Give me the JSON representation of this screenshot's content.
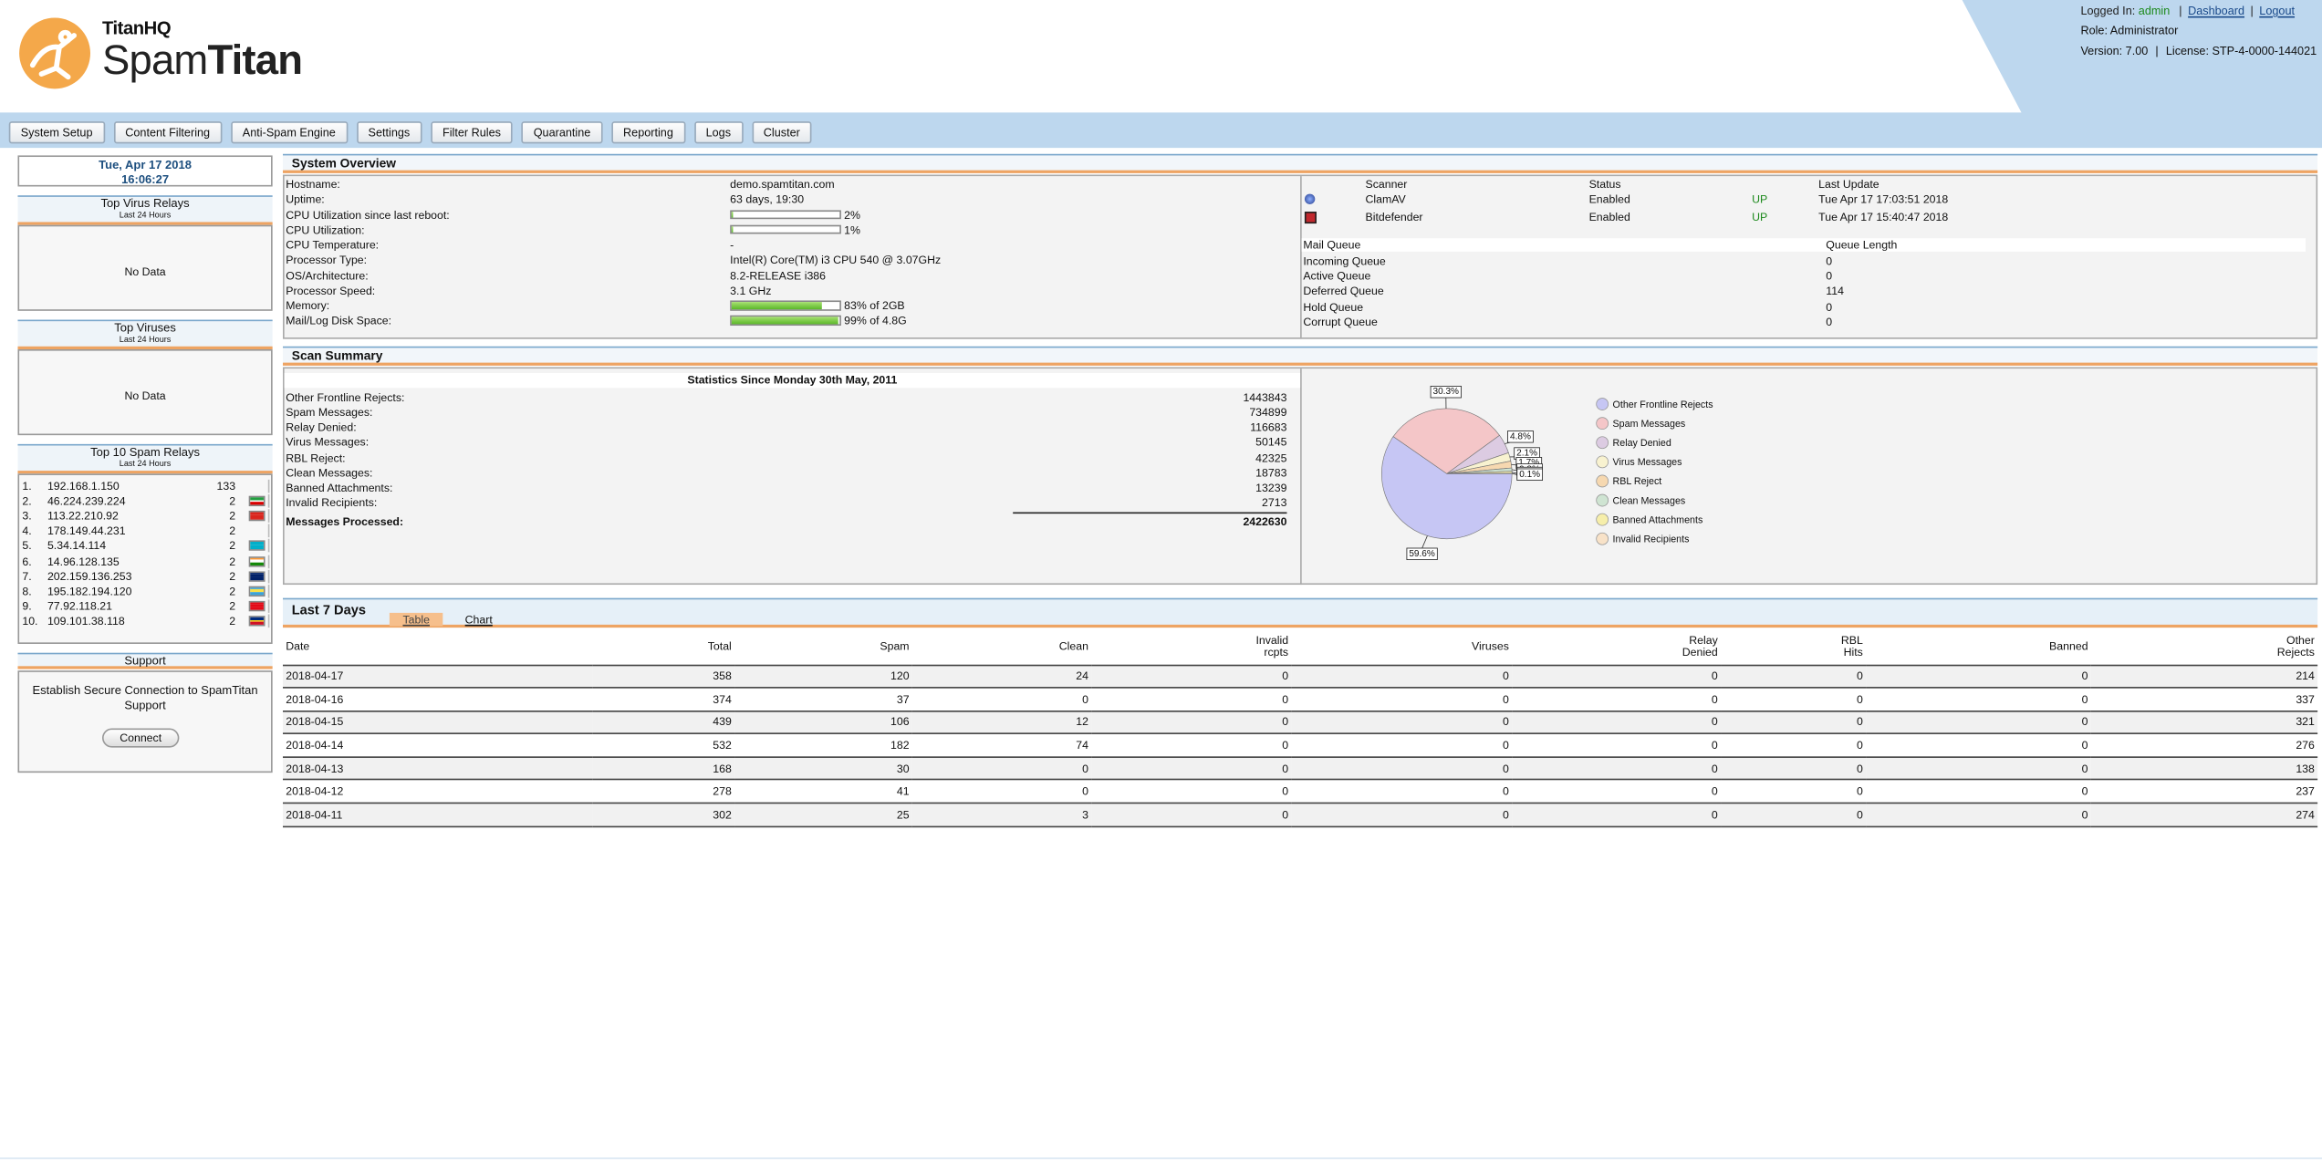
{
  "header": {
    "brand_top": "TitanHQ",
    "brand_light": "Spam",
    "brand_bold": "Titan",
    "logged_in": "Logged In:",
    "user": "admin",
    "separator": "|",
    "dashboard": "Dashboard",
    "logout": "Logout",
    "role": "Role: Administrator",
    "version": "Version: 7.00",
    "license": "License: STP-4-0000-144021"
  },
  "nav": [
    "System Setup",
    "Content Filtering",
    "Anti-Spam Engine",
    "Settings",
    "Filter Rules",
    "Quarantine",
    "Reporting",
    "Logs",
    "Cluster"
  ],
  "sidebar": {
    "date": "Tue, Apr 17 2018",
    "time": "16:06:27",
    "virus_relays": {
      "title": "Top Virus Relays",
      "subtitle": "Last 24 Hours",
      "empty": "No Data"
    },
    "viruses": {
      "title": "Top Viruses",
      "subtitle": "Last 24 Hours",
      "empty": "No Data"
    },
    "spam_relays": {
      "title": "Top 10 Spam Relays",
      "subtitle": "Last 24 Hours",
      "rows": [
        [
          "1.",
          "192.168.1.150",
          133
        ],
        [
          "2.",
          "46.224.239.224",
          2
        ],
        [
          "3.",
          "113.22.210.92",
          2
        ],
        [
          "4.",
          "178.149.44.231",
          2
        ],
        [
          "5.",
          "5.34.14.114",
          2
        ],
        [
          "6.",
          "14.96.128.135",
          2
        ],
        [
          "7.",
          "202.159.136.253",
          2
        ],
        [
          "8.",
          "195.182.194.120",
          2
        ],
        [
          "9.",
          "77.92.118.21",
          2
        ],
        [
          "10.",
          "109.101.38.118",
          2
        ]
      ]
    },
    "support": {
      "title": "Support",
      "text": "Establish Secure Connection to SpamTitan Support",
      "button": "Connect"
    }
  },
  "system_overview": {
    "title": "System Overview",
    "rows": [
      {
        "label": "Hostname:",
        "value": "demo.spamtitan.com"
      },
      {
        "label": "Uptime:",
        "value": "63 days, 19:30"
      },
      {
        "label": "CPU Utilization since last reboot:",
        "percent": 2,
        "value": "2%"
      },
      {
        "label": "CPU Utilization:",
        "percent": 1,
        "value": "1%"
      },
      {
        "label": "CPU Temperature:",
        "value": "-"
      },
      {
        "label": "Processor Type:",
        "value": "Intel(R) Core(TM) i3 CPU 540 @ 3.07GHz"
      },
      {
        "label": "OS/Architecture:",
        "value": "8.2-RELEASE i386"
      },
      {
        "label": "Processor Speed:",
        "value": "3.1 GHz"
      },
      {
        "label": "Memory:",
        "percent": 83,
        "value": "83% of 2GB"
      },
      {
        "label": "Mail/Log Disk Space:",
        "percent": 99,
        "value": "99% of 4.8G"
      }
    ],
    "scanners": {
      "headers": [
        "Scanner",
        "Status",
        "Last Update"
      ],
      "rows": [
        {
          "name": "ClamAV",
          "status": "Enabled",
          "state": "UP",
          "updated": "Tue Apr 17 17:03:51 2018"
        },
        {
          "name": "Bitdefender",
          "status": "Enabled",
          "state": "UP",
          "updated": "Tue Apr 17 15:40:47 2018"
        }
      ]
    },
    "queue": {
      "headers": [
        "Mail Queue",
        "Queue Length"
      ],
      "rows": [
        [
          "Incoming Queue",
          0
        ],
        [
          "Active Queue",
          0
        ],
        [
          "Deferred Queue",
          114
        ],
        [
          "Hold Queue",
          0
        ],
        [
          "Corrupt Queue",
          0
        ]
      ]
    }
  },
  "scan_summary": {
    "title": "Scan Summary",
    "stats_title": "Statistics Since Monday 30th May, 2011",
    "rows": [
      [
        "Other Frontline Rejects:",
        1443843
      ],
      [
        "Spam Messages:",
        734899
      ],
      [
        "Relay Denied:",
        116683
      ],
      [
        "Virus Messages:",
        50145
      ],
      [
        "RBL Reject:",
        42325
      ],
      [
        "Clean Messages:",
        18783
      ],
      [
        "Banned Attachments:",
        13239
      ],
      [
        "Invalid Recipients:",
        2713
      ]
    ],
    "total": [
      "Messages Processed:",
      2422630
    ],
    "chart": {
      "type": "pie",
      "categories": [
        "Other Frontline Rejects",
        "Spam Messages",
        "Relay Denied",
        "Virus Messages",
        "RBL Reject",
        "Clean Messages",
        "Banned Attachments",
        "Invalid Recipients"
      ],
      "values": [
        59.6,
        30.3,
        4.8,
        2.1,
        1.7,
        0.8,
        0.5,
        0.1
      ],
      "value_labels": [
        "59.6%",
        "30.3%",
        "4.8%",
        "2.1%",
        "1.7%",
        "0.8%",
        "0.5%",
        "0.1%"
      ],
      "colors": [
        "#c6c6f4",
        "#f4c6c8",
        "#dccbe2",
        "#f8f2d0",
        "#f6d8b0",
        "#cfe4d2",
        "#f6eeaa",
        "#f8e2c8"
      ]
    }
  },
  "last_7_days": {
    "title": "Last 7 Days",
    "tabs": [
      "Table",
      "Chart"
    ],
    "headers": [
      "Date",
      "Total",
      "Spam",
      "Clean",
      "Invalid\nrcpts",
      "Viruses",
      "Relay\nDenied",
      "RBL\nHits",
      "Banned",
      "Other\nRejects"
    ],
    "rows": [
      [
        "2018-04-17",
        358,
        120,
        24,
        0,
        0,
        0,
        0,
        0,
        214
      ],
      [
        "2018-04-16",
        374,
        37,
        0,
        0,
        0,
        0,
        0,
        0,
        337
      ],
      [
        "2018-04-15",
        439,
        106,
        12,
        0,
        0,
        0,
        0,
        0,
        321
      ],
      [
        "2018-04-14",
        532,
        182,
        74,
        0,
        0,
        0,
        0,
        0,
        276
      ],
      [
        "2018-04-13",
        168,
        30,
        0,
        0,
        0,
        0,
        0,
        0,
        138
      ],
      [
        "2018-04-12",
        278,
        41,
        0,
        0,
        0,
        0,
        0,
        0,
        237
      ],
      [
        "2018-04-11",
        302,
        25,
        3,
        0,
        0,
        0,
        0,
        0,
        274
      ]
    ]
  }
}
